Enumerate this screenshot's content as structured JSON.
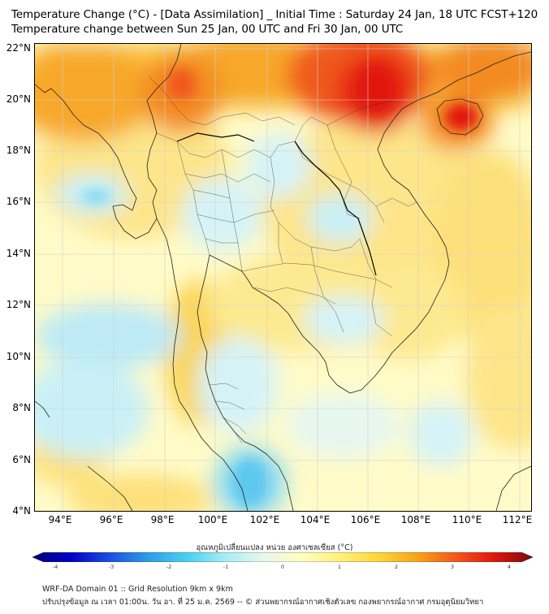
{
  "title_line1": "Temperature Change (°C) - [Data Assimilation] _ Initial Time : Saturday 24 Jan, 18 UTC FCST+120",
  "title_line2": "Temperature change between Sun 25 Jan, 00 UTC and Fri 30 Jan, 00 UTC",
  "map": {
    "lat_labels": [
      "22°N",
      "20°N",
      "18°N",
      "16°N",
      "14°N",
      "12°N",
      "10°N",
      "8°N",
      "6°N",
      "4°N"
    ],
    "lon_labels": [
      "94°E",
      "96°E",
      "98°E",
      "100°E",
      "102°E",
      "104°E",
      "106°E",
      "108°E",
      "110°E",
      "112°E"
    ]
  },
  "colorbar": {
    "title": "อุณหภูมิเปลี่ยนแปลง หน่วย องศาเซลเซียส (°C)",
    "ticks": [
      "-4",
      "-3",
      "-2",
      "-1",
      "0",
      "1",
      "2",
      "3",
      "4"
    ],
    "colors": [
      "#00007a",
      "#0000c8",
      "#1a4fe0",
      "#2f9be8",
      "#48d0f0",
      "#a8ecf5",
      "#e8f8ea",
      "#fefec0",
      "#fff07a",
      "#fcd53a",
      "#f8a419",
      "#f2581a",
      "#e1150e",
      "#7a0808"
    ]
  },
  "footer": {
    "line1": "WRF-DA Domain 01 :: Grid Resolution 9km x 9km",
    "line2": "ปรับปรุงข้อมูล ณ เวลา 01:00น. วัน อา. ที่ 25 ม.ค. 2569 -- © ส่วนพยากรณ์อากาศเชิงตัวเลข กองพยากรณ์อากาศ กรมอุตุนิยมวิทยา"
  }
}
